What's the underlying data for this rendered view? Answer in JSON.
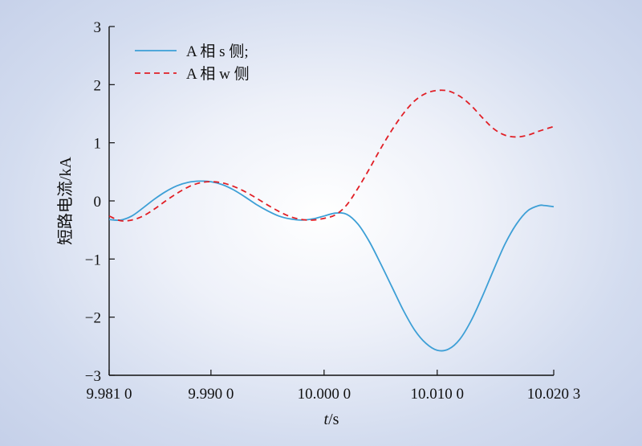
{
  "chart_data": {
    "type": "line",
    "xlabel_italic": "t",
    "xlabel_rest": "/s",
    "ylabel": "短路电流/kA",
    "xlim": [
      9.981,
      10.0203
    ],
    "ylim": [
      -3,
      3
    ],
    "x_ticks": [
      9.981,
      9.99,
      10.0,
      10.01,
      10.0203
    ],
    "x_tick_labels": [
      "9.981 0",
      "9.990 0",
      "10.000 0",
      "10.010 0",
      "10.020 3"
    ],
    "y_ticks": [
      -3,
      -2,
      -1,
      0,
      1,
      2,
      3
    ],
    "y_tick_labels": [
      "−3",
      "−2",
      "−1",
      "0",
      "1",
      "2",
      "3"
    ],
    "legend_position": "top-left",
    "series": [
      {
        "name": "A 相 s 侧;",
        "color": "#3d9fd6",
        "style": "solid",
        "x": [
          9.981,
          9.982,
          9.983,
          9.984,
          9.985,
          9.986,
          9.987,
          9.988,
          9.989,
          9.99,
          9.991,
          9.992,
          9.993,
          9.994,
          9.995,
          9.996,
          9.997,
          9.998,
          9.999,
          10.0,
          10.001,
          10.002,
          10.003,
          10.004,
          10.005,
          10.006,
          10.007,
          10.008,
          10.009,
          10.01,
          10.011,
          10.012,
          10.013,
          10.014,
          10.015,
          10.016,
          10.017,
          10.018,
          10.019,
          10.0195,
          10.0203
        ],
        "y": [
          -0.32,
          -0.33,
          -0.26,
          -0.12,
          0.03,
          0.16,
          0.26,
          0.32,
          0.34,
          0.33,
          0.28,
          0.19,
          0.07,
          -0.06,
          -0.17,
          -0.26,
          -0.31,
          -0.33,
          -0.31,
          -0.26,
          -0.21,
          -0.23,
          -0.4,
          -0.7,
          -1.08,
          -1.48,
          -1.88,
          -2.22,
          -2.45,
          -2.57,
          -2.55,
          -2.38,
          -2.06,
          -1.64,
          -1.18,
          -0.74,
          -0.4,
          -0.17,
          -0.08,
          -0.08,
          -0.1
        ]
      },
      {
        "name": "A 相 w 侧",
        "color": "#e11f26",
        "style": "dashed",
        "x": [
          9.981,
          9.982,
          9.983,
          9.984,
          9.985,
          9.986,
          9.987,
          9.988,
          9.989,
          9.99,
          9.991,
          9.992,
          9.993,
          9.994,
          9.995,
          9.996,
          9.997,
          9.998,
          9.999,
          10.0,
          10.001,
          10.002,
          10.003,
          10.004,
          10.005,
          10.006,
          10.007,
          10.008,
          10.009,
          10.01,
          10.011,
          10.012,
          10.013,
          10.014,
          10.015,
          10.016,
          10.017,
          10.018,
          10.019,
          10.0203
        ],
        "y": [
          -0.26,
          -0.34,
          -0.33,
          -0.26,
          -0.14,
          0.0,
          0.13,
          0.24,
          0.31,
          0.33,
          0.31,
          0.25,
          0.16,
          0.05,
          -0.07,
          -0.18,
          -0.27,
          -0.32,
          -0.33,
          -0.3,
          -0.24,
          -0.07,
          0.22,
          0.55,
          0.9,
          1.22,
          1.5,
          1.72,
          1.85,
          1.9,
          1.89,
          1.8,
          1.64,
          1.43,
          1.24,
          1.13,
          1.1,
          1.13,
          1.2,
          1.28
        ]
      }
    ]
  }
}
